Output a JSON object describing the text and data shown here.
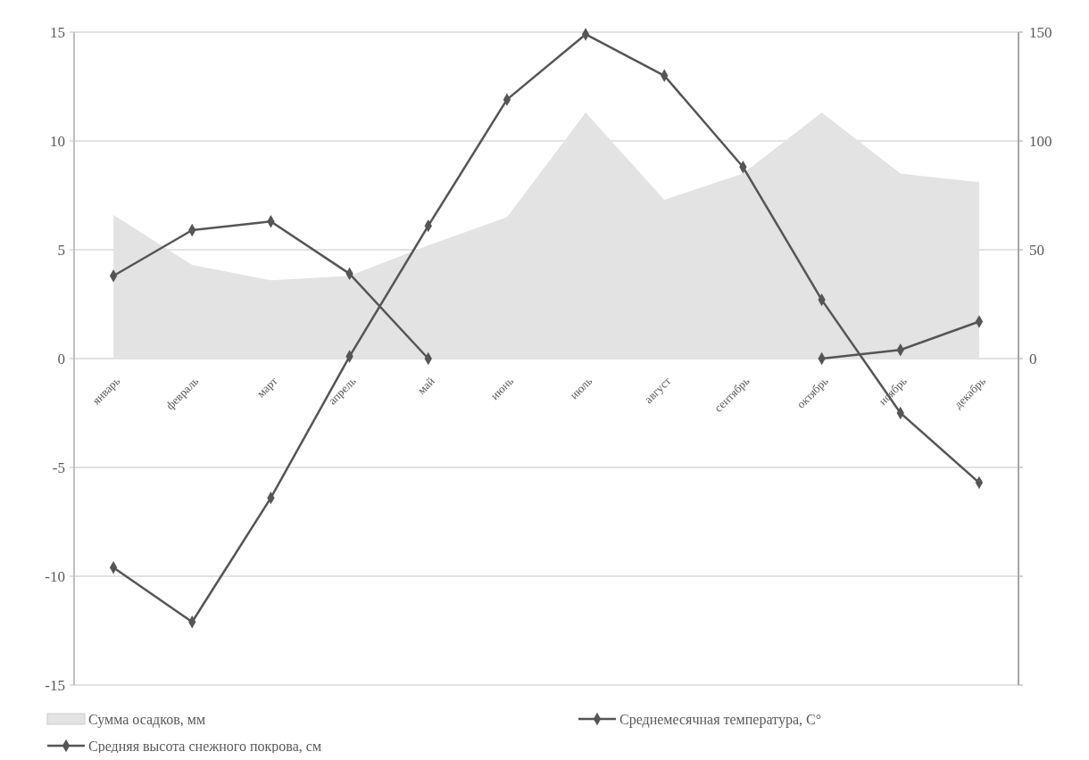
{
  "chart_data": {
    "type": "line",
    "categories": [
      "январь",
      "февраль",
      "март",
      "апрель",
      "май",
      "июнь",
      "июль",
      "август",
      "сентябрь",
      "октябрь",
      "ноябрь",
      "декабрь"
    ],
    "series": [
      {
        "name": "Сумма осадков, мм",
        "type": "area",
        "axis": "y2",
        "color": "#e3e3e3",
        "values": [
          66,
          43,
          36,
          38,
          52,
          65,
          113,
          73,
          85,
          113,
          85,
          81
        ]
      },
      {
        "name": "Среднемесячная температура, С°",
        "color": "#555555",
        "marker": "diamond",
        "values": [
          -9.6,
          -12.1,
          -6.4,
          0.1,
          6.1,
          11.9,
          14.9,
          13.0,
          8.8,
          2.7,
          -2.5,
          -5.7
        ]
      },
      {
        "name": "Средняя высота снежного покрова, см",
        "axis": "y2",
        "color": "#555555",
        "marker": "diamond",
        "values": [
          38,
          59,
          63,
          39,
          0,
          null,
          null,
          null,
          null,
          0,
          4,
          17
        ]
      }
    ],
    "ylim": [
      -15,
      15
    ],
    "yticks": [
      -15,
      -10,
      -5,
      0,
      5,
      10,
      15
    ],
    "y2lim": [
      -150,
      150
    ],
    "y2ticks": [
      {
        "value": -150,
        "label": null
      },
      {
        "value": -100,
        "label": null
      },
      {
        "value": -50,
        "label": null
      },
      0,
      50,
      100,
      150
    ],
    "grid": "y",
    "legend": "bottom"
  }
}
